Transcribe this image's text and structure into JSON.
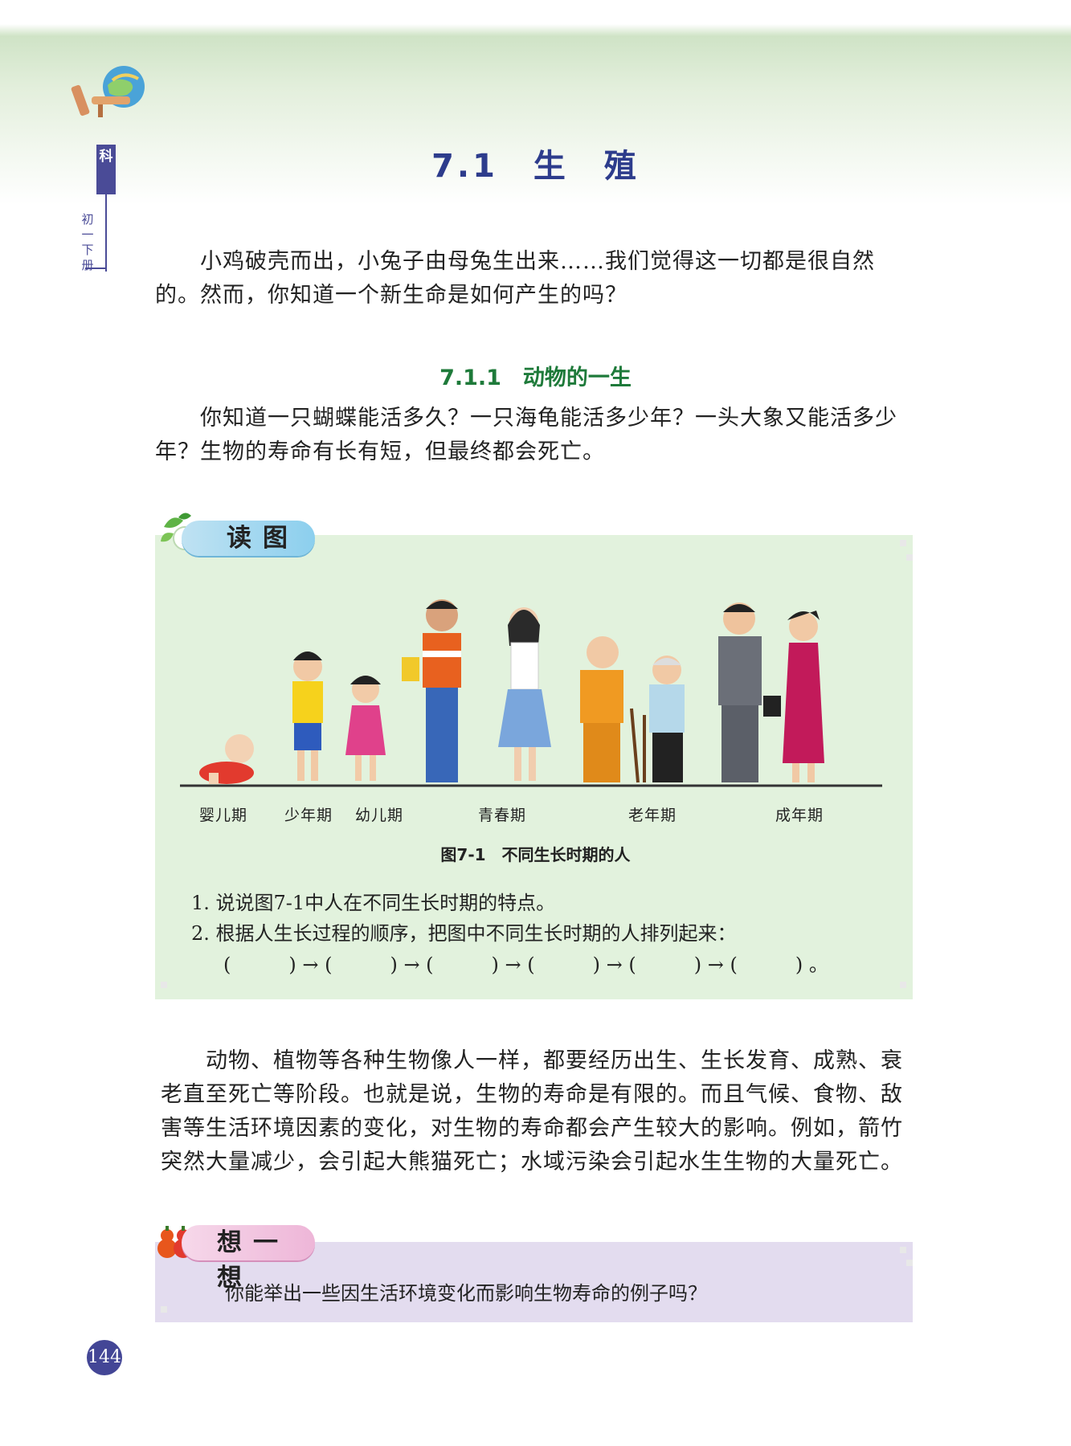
{
  "side_tab": {
    "subject": "科",
    "label": "初一下册"
  },
  "chapter": {
    "title": "7.1　生　殖"
  },
  "intro": {
    "line1": "小鸡破壳而出，小兔子由母兔生出来……我们觉得这一切都是很自然",
    "line2": "的。然而，你知道一个新生命是如何产生的吗？"
  },
  "section": {
    "title": "7.1.1　动物的一生"
  },
  "section_para": {
    "line1": "你知道一只蝴蝶能活多久？一只海龟能活多少年？一头大象又能活多少",
    "line2": "年？生物的寿命有长有短，但最终都会死亡。"
  },
  "read_box": {
    "tag": "读图",
    "stages": [
      "婴儿期",
      "少年期",
      "幼儿期",
      "青春期",
      "老年期",
      "成年期"
    ],
    "caption": "图7-1　不同生长时期的人",
    "questions": [
      "1. 说说图7-1中人在不同生长时期的特点。",
      "2. 根据人生长过程的顺序，把图中不同生长时期的人排列起来："
    ],
    "blanks": "(　　　) → (　　　) → (　　　) → (　　　) → (　　　) → (　　　) 。"
  },
  "body_para": {
    "line1": "动物、植物等各种生物像人一样，都要经历出生、生长发育、成熟、衰",
    "line2": "老直至死亡等阶段。也就是说，生物的寿命是有限的。而且气候、食物、敌",
    "line3": "害等生活环境因素的变化，对生物的寿命都会产生较大的影响。例如，箭竹",
    "line4": "突然大量减少，会引起大熊猫死亡；水域污染会引起水生生物的大量死亡。"
  },
  "think_box": {
    "tag": "想一想",
    "text": "你能举出一些因生活环境变化而影响生物寿命的例子吗？"
  },
  "page_number": "144"
}
